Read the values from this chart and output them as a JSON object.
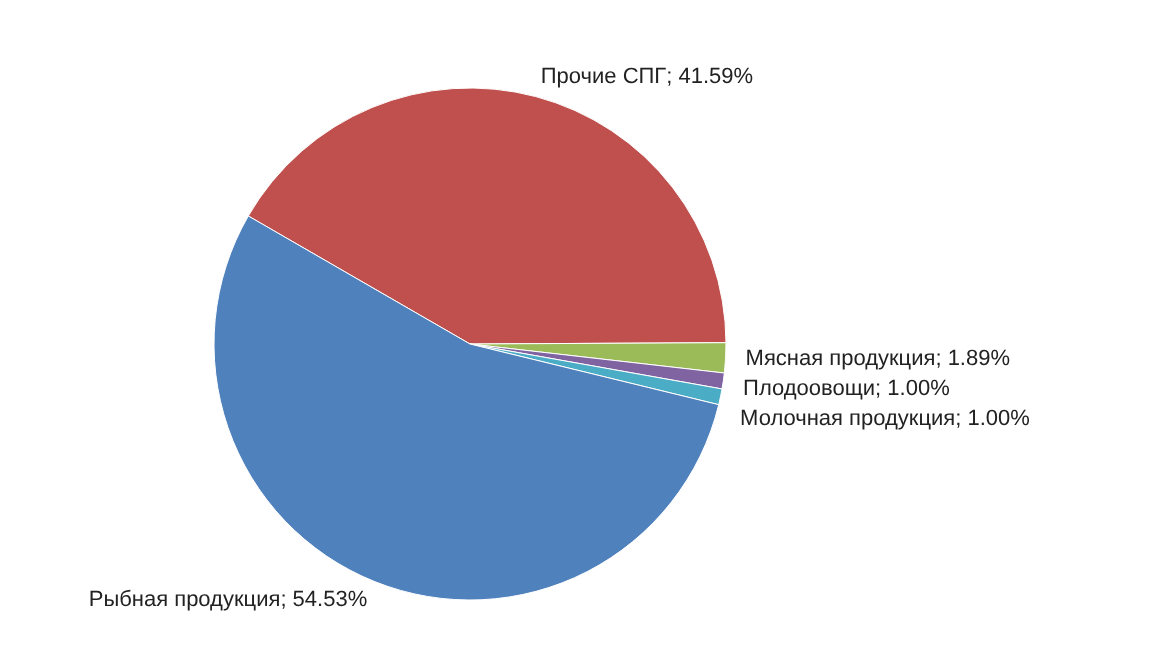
{
  "chart_data": {
    "type": "pie",
    "categories": [
      "Прочие СПГ",
      "Мясная продукция",
      "Плодоовощи",
      "Молочная продукция",
      "Рыбная продукция"
    ],
    "values": [
      41.59,
      1.89,
      1.0,
      1.0,
      54.53
    ],
    "value_labels": [
      "41.59%",
      "1.89%",
      "1.00%",
      "1.00%",
      "54.53%"
    ],
    "colors": [
      "#c0504d",
      "#9bbb59",
      "#8064a2",
      "#4bacc6",
      "#4f81bd"
    ]
  }
}
